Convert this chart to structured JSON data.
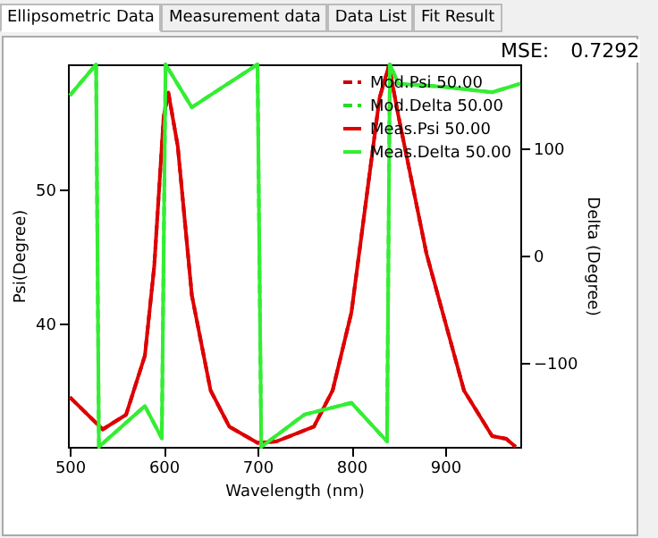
{
  "chart_data": {
    "type": "line",
    "xlabel": "Wavelength (nm)",
    "ylabel": "Psi(Degree)",
    "y2label": "Delta (Degree)",
    "annotations": [
      "Ellipsometric Data",
      "Measurement data",
      "Data List",
      "Fit Result",
      "MSE:",
      "0.7292"
    ],
    "xlim": [
      498,
      980
    ],
    "xticks": [
      500,
      600,
      700,
      800,
      900
    ],
    "ylim": [
      30.8,
      59.3
    ],
    "yticks": [
      40,
      50
    ],
    "y2lim": [
      -178,
      178
    ],
    "y2ticks": [
      -100,
      0,
      100
    ],
    "grid": false,
    "legend": "top right",
    "marker": "none",
    "series": [
      {
        "name": "Mod.Psi 50.00",
        "color": "#cc0000",
        "line_style": "dashed",
        "x": [
          500,
          535,
          560,
          580,
          590,
          600,
          605,
          615,
          630,
          650,
          670,
          700,
          720,
          760,
          780,
          800,
          815,
          830,
          840,
          850,
          880,
          920,
          950,
          965,
          975
        ],
        "values": [
          34.5,
          32.1,
          33.2,
          37.6,
          44.3,
          55.4,
          57.2,
          53.2,
          42.1,
          35,
          32.3,
          31.1,
          31.2,
          32.3,
          35,
          40.8,
          48.8,
          56.8,
          59.2,
          55.5,
          45.2,
          35,
          31.6,
          31.4,
          30.8
        ]
      },
      {
        "name": "Mod.Delta 50.00",
        "color": "#22dd22",
        "line_style": "dashed",
        "axis": "y2",
        "x": [
          500,
          528,
          531,
          580,
          598,
          602,
          630,
          700,
          704,
          750,
          800,
          838,
          841,
          850,
          900,
          950,
          980
        ],
        "values": [
          149,
          178,
          -178,
          -140,
          -170,
          178,
          138,
          178,
          -178,
          -148,
          -137,
          -173,
          178,
          160,
          157,
          152,
          160
        ]
      },
      {
        "name": "Meas.Psi 50.00",
        "color": "#dd0000",
        "line_style": "solid",
        "x": [
          500,
          535,
          560,
          580,
          590,
          600,
          605,
          615,
          630,
          650,
          670,
          700,
          720,
          760,
          780,
          800,
          815,
          830,
          840,
          850,
          880,
          920,
          950,
          965,
          975
        ],
        "values": [
          34.5,
          32.1,
          33.2,
          37.6,
          44.3,
          55.4,
          57.2,
          53.2,
          42.1,
          35,
          32.3,
          31.1,
          31.2,
          32.3,
          35,
          40.8,
          48.8,
          56.8,
          59.2,
          55.5,
          45.2,
          35,
          31.6,
          31.4,
          30.8
        ]
      },
      {
        "name": "Meas.Delta 50.00",
        "color": "#33ee33",
        "line_style": "solid",
        "axis": "y2",
        "x": [
          500,
          528,
          531,
          580,
          598,
          602,
          630,
          700,
          704,
          750,
          800,
          838,
          841,
          850,
          900,
          950,
          980
        ],
        "values": [
          149,
          178,
          -178,
          -140,
          -170,
          178,
          138,
          178,
          -178,
          -148,
          -137,
          -173,
          178,
          160,
          157,
          152,
          160
        ]
      }
    ]
  }
}
